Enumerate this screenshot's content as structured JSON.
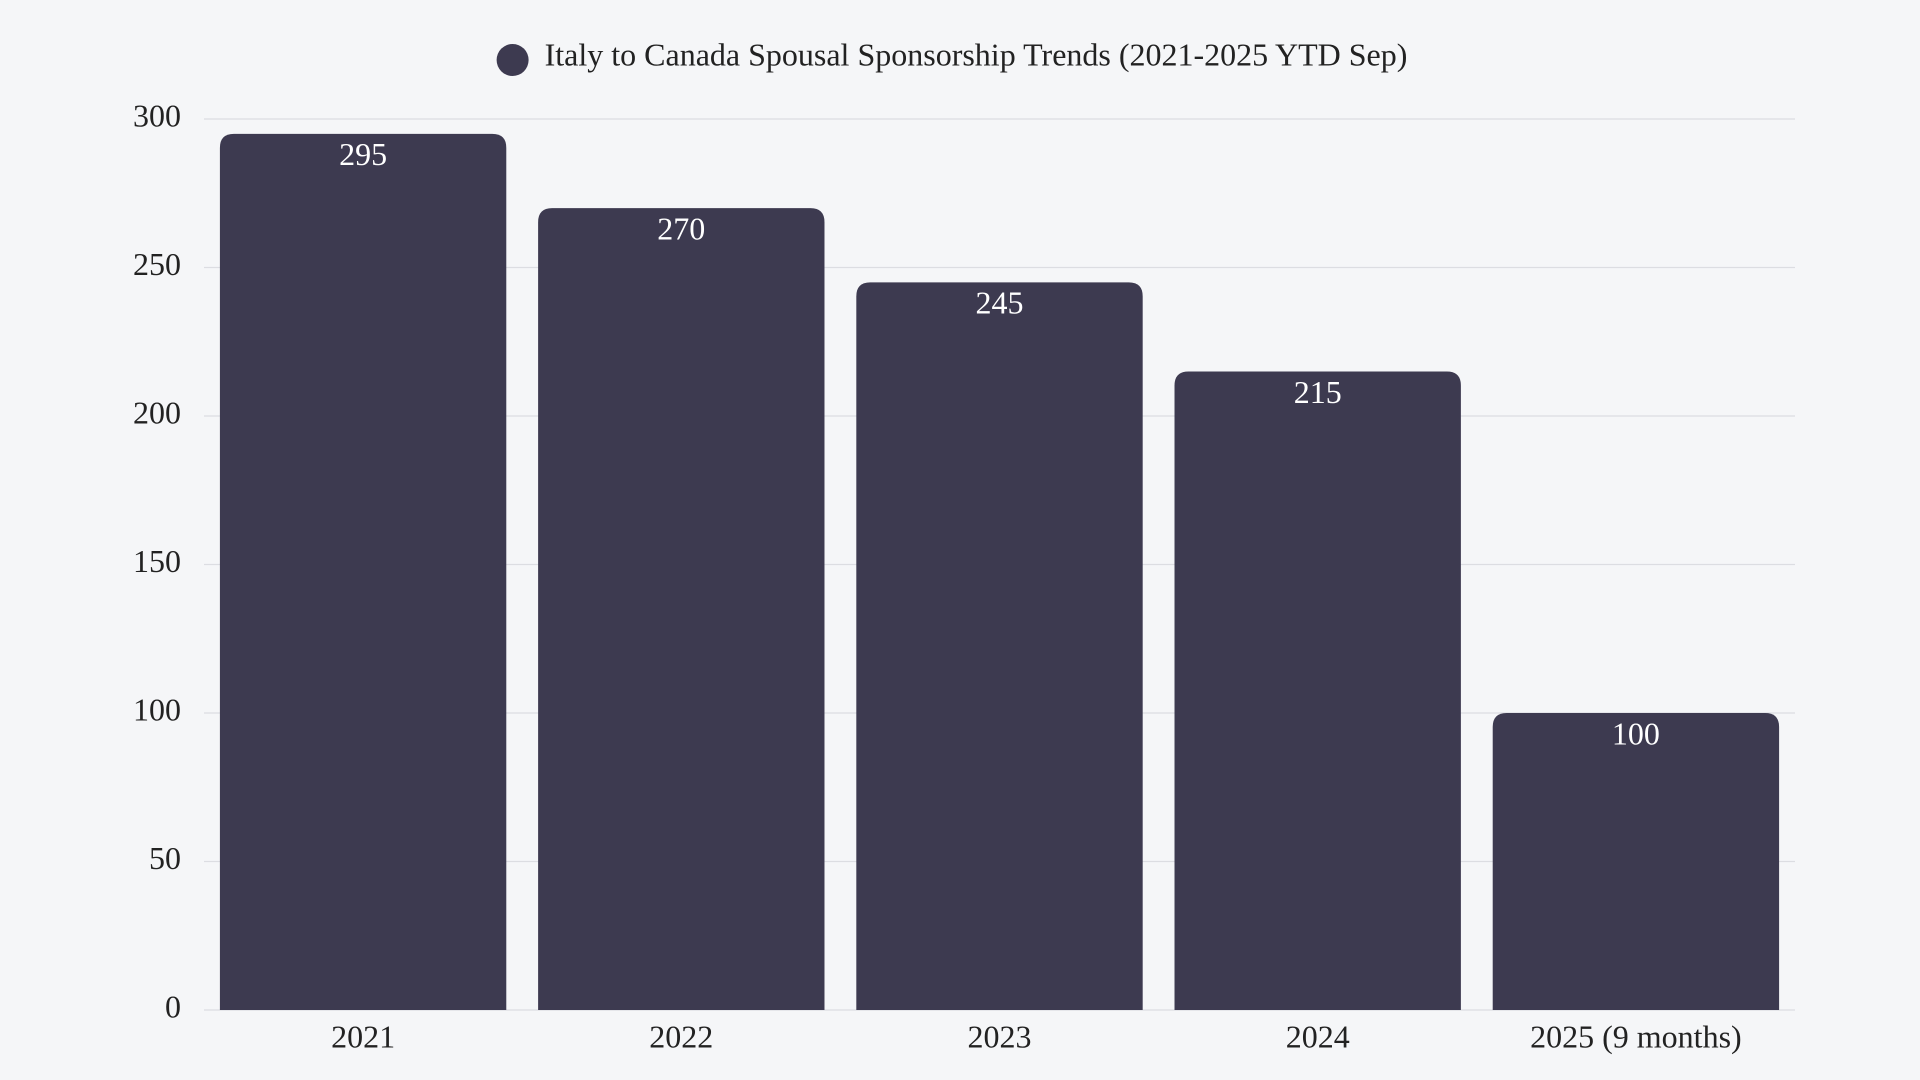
{
  "chart_data": {
    "type": "bar",
    "categories": [
      "2021",
      "2022",
      "2023",
      "2024",
      "2025 (9 months)"
    ],
    "series": [
      {
        "name": "Italy to Canada Spousal Sponsorship Trends (2021-2025 YTD Sep)",
        "color": "#3d3a50",
        "values": [
          295,
          270,
          245,
          215,
          100
        ]
      }
    ],
    "ylim": [
      0,
      300
    ],
    "yticks": [
      0,
      50,
      100,
      150,
      200,
      250,
      300
    ],
    "grid": true,
    "legend": "top"
  }
}
